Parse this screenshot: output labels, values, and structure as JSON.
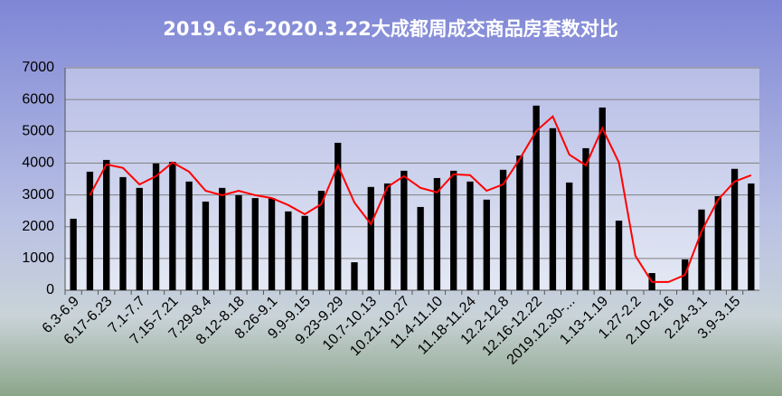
{
  "chart_data": {
    "type": "bar-line",
    "title": "2019.6.6-2020.3.22大成都周成交商品房套数对比",
    "categories": [
      "6.3-6.9",
      null,
      "6.17-6.23",
      null,
      "7.1-7.7",
      null,
      "7.15-7.21",
      null,
      "7.29-8.4",
      null,
      "8.12-8.18",
      null,
      "8.26-9.1",
      null,
      "9.9-9.15",
      null,
      "9.23-9.29",
      null,
      "10.7-10.13",
      null,
      "10.21-10.27",
      null,
      "11.4-11.10",
      null,
      "11.18-11.24",
      null,
      "12.2-12.8",
      null,
      "12.16-12.22",
      null,
      "2019.12.30-...",
      null,
      "1.13-1.19",
      null,
      "1.27-2.2",
      null,
      "2.10-2.16",
      null,
      "2.24-3.1",
      null,
      "3.9-3.15",
      null
    ],
    "series": [
      {
        "type": "bar",
        "color": "#000000",
        "values": [
          2250,
          3730,
          4100,
          3560,
          3220,
          3990,
          4040,
          3420,
          2790,
          3220,
          2990,
          2900,
          2900,
          2480,
          2340,
          3130,
          4640,
          880,
          3250,
          3360,
          3760,
          2620,
          3530,
          3760,
          3420,
          2850,
          3790,
          4240,
          5810,
          5100,
          3390,
          4470,
          5750,
          2190,
          null,
          540,
          null,
          970,
          2540,
          2960,
          3820,
          3360
        ]
      },
      {
        "type": "line",
        "color": "#ff0000",
        "values": [
          null,
          2990,
          3960,
          3850,
          3330,
          3590,
          4020,
          3730,
          3130,
          2990,
          3130,
          2990,
          2900,
          2680,
          2390,
          2710,
          3930,
          2760,
          2080,
          3250,
          3590,
          3220,
          3080,
          3650,
          3620,
          3130,
          3330,
          4130,
          5010,
          5470,
          4270,
          3930,
          5100,
          4020,
          1080,
          260,
          260,
          480,
          1850,
          2850,
          3420,
          3620
        ]
      }
    ],
    "ylim": [
      0,
      7000
    ],
    "yticks": [
      0,
      1000,
      2000,
      3000,
      4000,
      5000,
      6000,
      7000
    ],
    "grid": true
  }
}
